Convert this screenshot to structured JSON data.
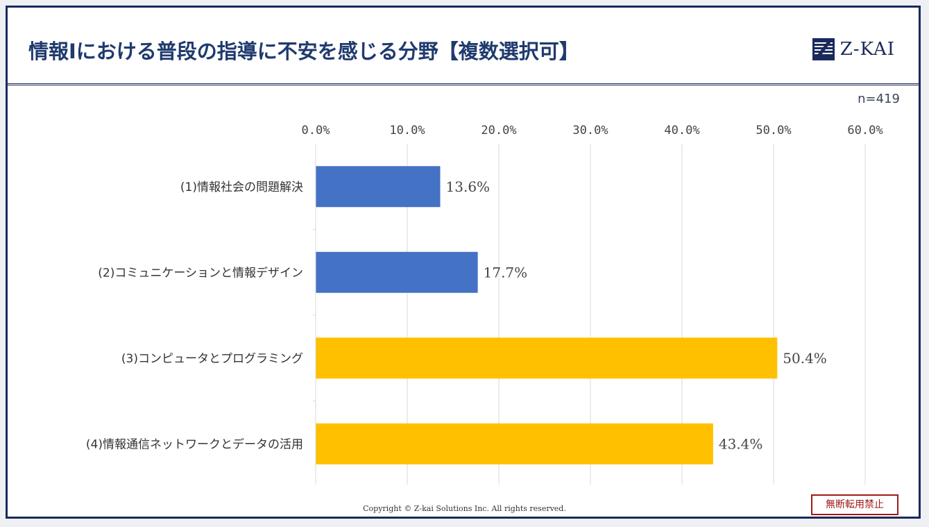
{
  "header": {
    "title": "情報Ⅰにおける普段の指導に不安を感じる分野【複数選択可】",
    "logo_text": "Z-KAI"
  },
  "sample_size": "n=419",
  "footer": {
    "copyright": "Copyright © Z-kai Solutions Inc. All rights reserved.",
    "stamp": "無断転用禁止"
  },
  "colors": {
    "blue": "#4472c4",
    "gold": "#ffc000",
    "navy": "#1a2a5c"
  },
  "chart_data": {
    "type": "bar",
    "orientation": "horizontal",
    "categories": [
      "(1)情報社会の問題解決",
      "(2)コミュニケーションと情報デザイン",
      "(3)コンピュータとプログラミング",
      "(4)情報通信ネットワークとデータの活用"
    ],
    "values": [
      13.6,
      17.7,
      50.4,
      43.4
    ],
    "value_labels": [
      "13.6%",
      "17.7%",
      "50.4%",
      "43.4%"
    ],
    "bar_colors": [
      "#4472c4",
      "#4472c4",
      "#ffc000",
      "#ffc000"
    ],
    "xlim": [
      0,
      60
    ],
    "ticks": [
      0,
      10,
      20,
      30,
      40,
      50,
      60
    ],
    "tick_labels": [
      "0.0%",
      "10.0%",
      "20.0%",
      "30.0%",
      "40.0%",
      "50.0%",
      "60.0%"
    ],
    "axis_position": "top",
    "grid": true
  }
}
